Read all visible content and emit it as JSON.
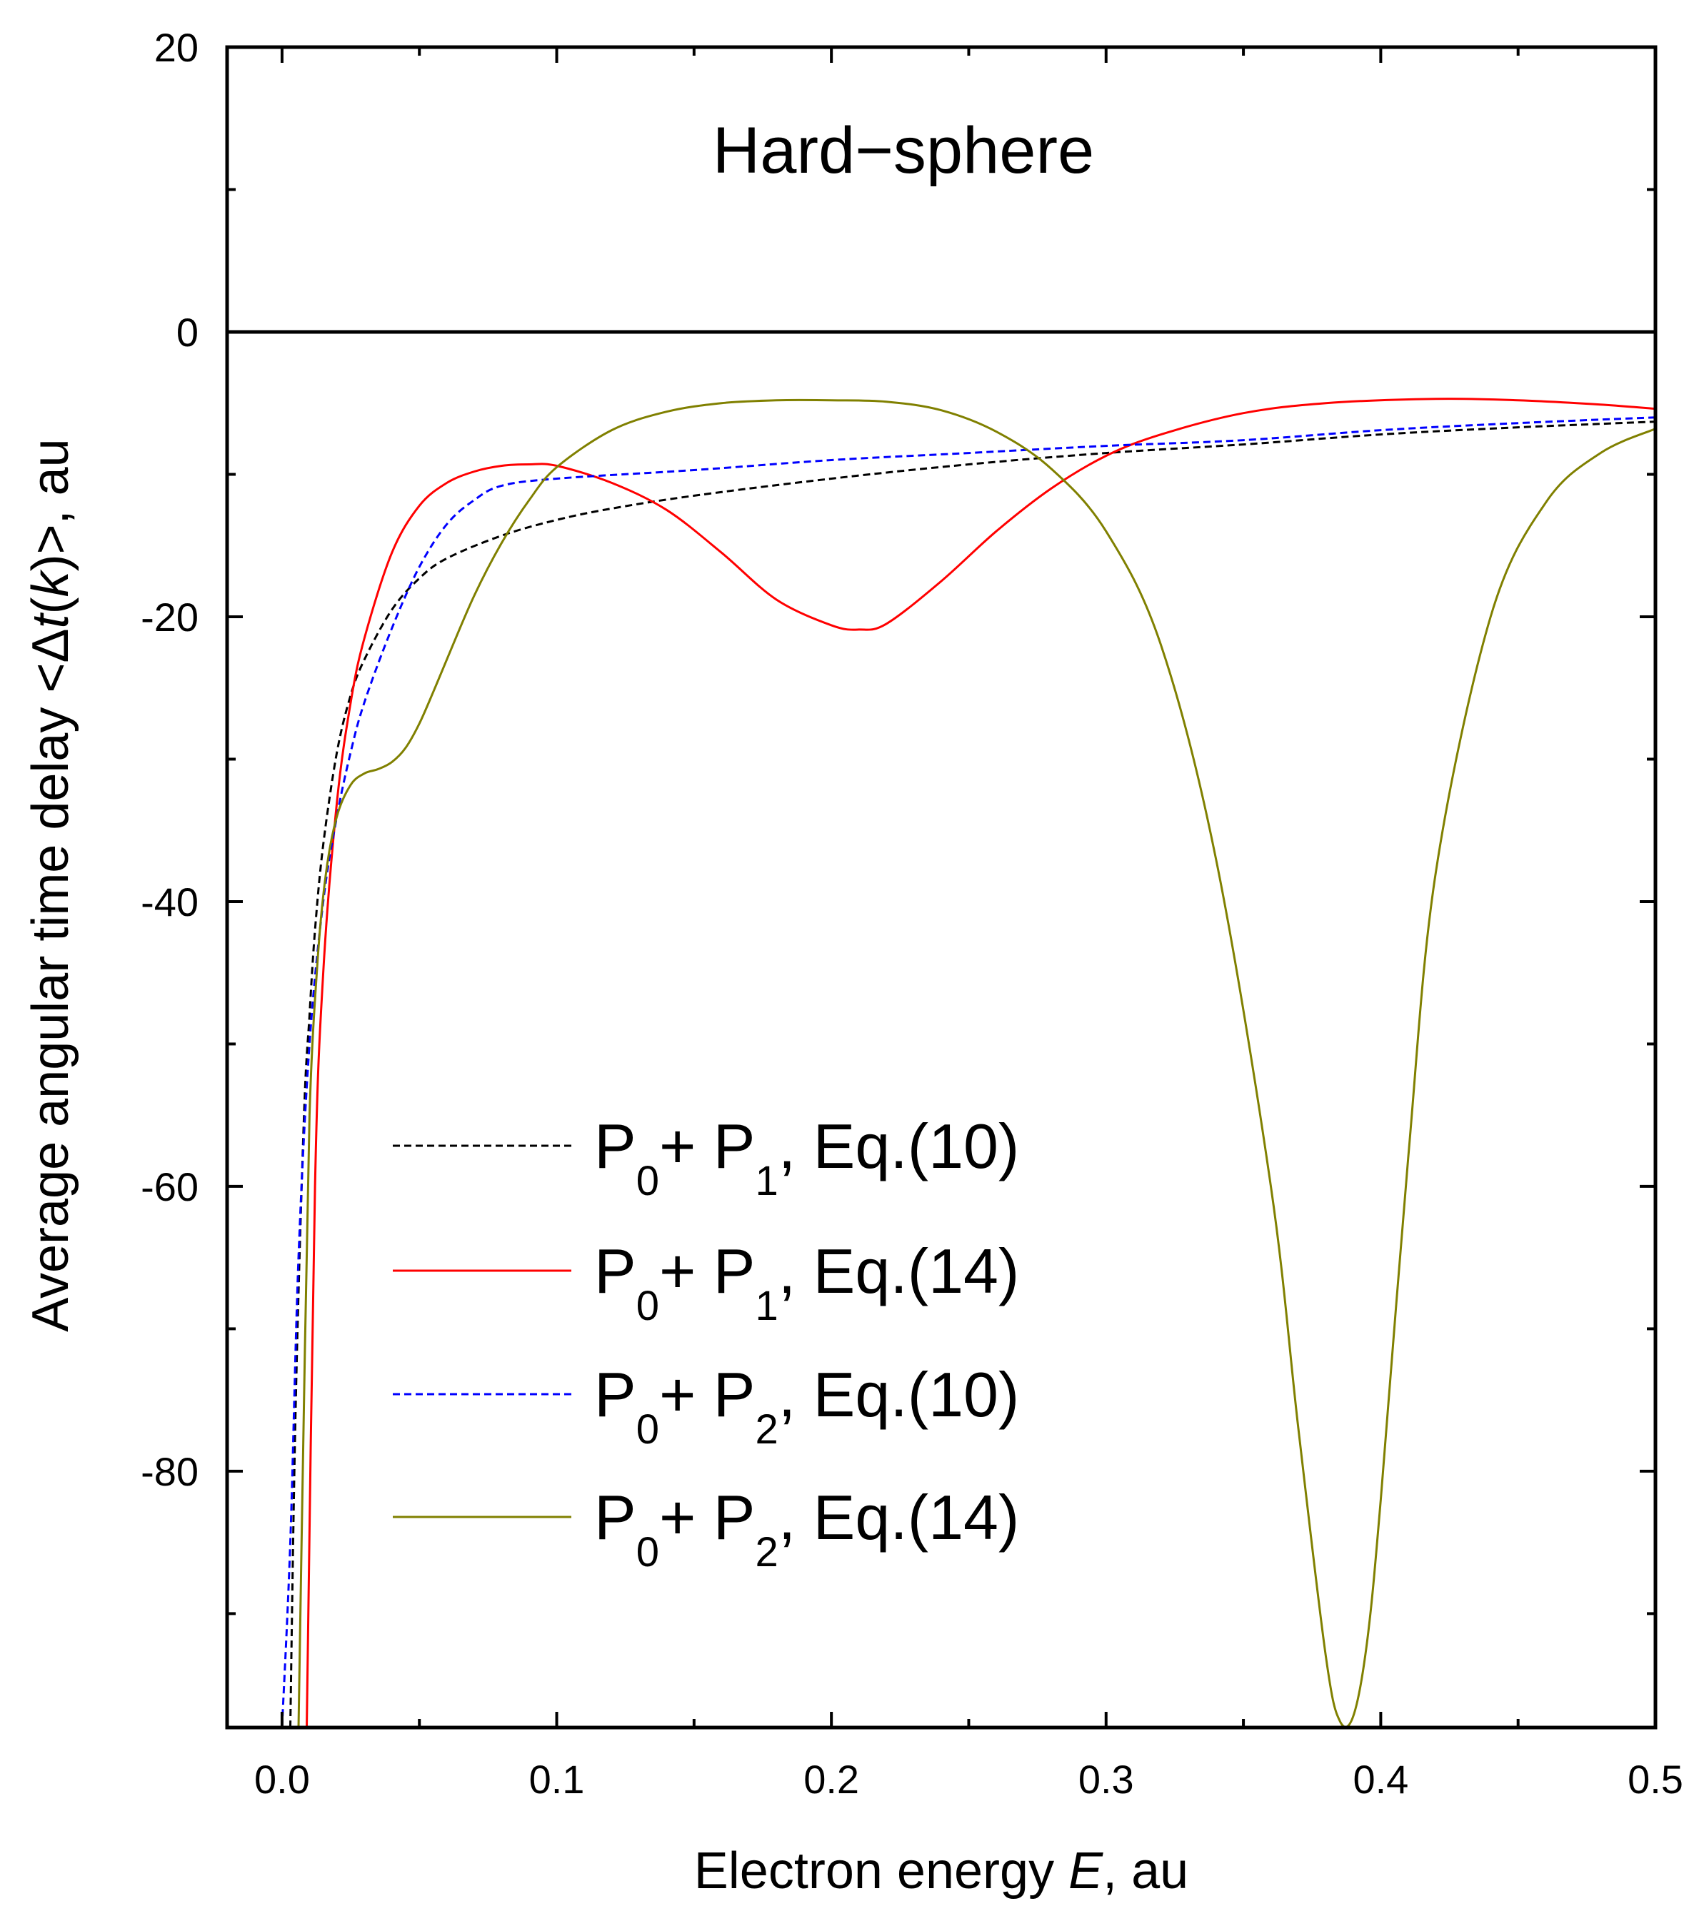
{
  "chart_data": {
    "type": "line",
    "title": "Hard−sphere",
    "xlabel": {
      "prefix": "Electron energy ",
      "italic": "E",
      "suffix": ", au"
    },
    "ylabel": {
      "prefix": "Average angular time delay <Δ",
      "italic1": "t",
      "mid": "(",
      "italic2": "k",
      "suffix": ")>, au"
    },
    "xlim": [
      -0.02,
      0.5
    ],
    "ylim": [
      -98,
      20
    ],
    "x_ticks": [
      {
        "value": 0.0,
        "label": "0.0"
      },
      {
        "value": 0.1,
        "label": "0.1"
      },
      {
        "value": 0.2,
        "label": "0.2"
      },
      {
        "value": 0.3,
        "label": "0.3"
      },
      {
        "value": 0.4,
        "label": "0.4"
      },
      {
        "value": 0.5,
        "label": "0.5"
      }
    ],
    "x_minor_ticks": [
      0.05,
      0.15,
      0.25,
      0.35,
      0.45
    ],
    "y_ticks": [
      {
        "value": 20,
        "label": "20"
      },
      {
        "value": 0,
        "label": "0"
      },
      {
        "value": -20,
        "label": "-20"
      },
      {
        "value": -40,
        "label": "-40"
      },
      {
        "value": -60,
        "label": "-60"
      },
      {
        "value": -80,
        "label": "-80"
      }
    ],
    "y_minor_ticks": [
      10,
      -10,
      -30,
      -50,
      -70,
      -90
    ],
    "zero_line": 0,
    "legend_position": "bottom-left",
    "series": [
      {
        "id": "s1",
        "base": "P",
        "sub_a": "0",
        "mid": "+ P",
        "sub_b": "1",
        "tail": ", Eq.(10)",
        "color": "#000000",
        "dash": "dashed",
        "x": [
          0.003,
          0.005,
          0.008,
          0.01,
          0.012,
          0.015,
          0.02,
          0.025,
          0.03,
          0.04,
          0.05,
          0.06,
          0.08,
          0.1,
          0.12,
          0.15,
          0.2,
          0.25,
          0.3,
          0.35,
          0.4,
          0.45,
          0.5
        ],
        "y": [
          -98,
          -75,
          -55,
          -48,
          -42,
          -36,
          -29.5,
          -25.5,
          -23,
          -19.5,
          -17.3,
          -15.9,
          -14.3,
          -13.2,
          -12.4,
          -11.5,
          -10.3,
          -9.3,
          -8.5,
          -7.9,
          -7.2,
          -6.7,
          -6.3
        ]
      },
      {
        "id": "s2",
        "base": "P",
        "sub_a": "0",
        "mid": "+ P",
        "sub_b": "1",
        "tail": ", Eq.(14)",
        "color": "#ff0000",
        "dash": "solid",
        "x": [
          0.009,
          0.012,
          0.015,
          0.02,
          0.025,
          0.03,
          0.04,
          0.05,
          0.06,
          0.07,
          0.08,
          0.09,
          0.1,
          0.12,
          0.14,
          0.16,
          0.18,
          0.2,
          0.21,
          0.22,
          0.24,
          0.26,
          0.28,
          0.3,
          0.32,
          0.35,
          0.38,
          0.42,
          0.45,
          0.48,
          0.5
        ],
        "y": [
          -98,
          -60,
          -45,
          -33,
          -26,
          -21.5,
          -15.5,
          -12.2,
          -10.6,
          -9.8,
          -9.4,
          -9.3,
          -9.4,
          -10.6,
          -12.5,
          -15.5,
          -18.8,
          -20.6,
          -20.9,
          -20.5,
          -17.5,
          -14,
          -11,
          -8.7,
          -7.2,
          -5.7,
          -5,
          -4.7,
          -4.8,
          -5.1,
          -5.4
        ]
      },
      {
        "id": "s3",
        "base": "P",
        "sub_a": "0",
        "mid": "+ P",
        "sub_b": "2",
        "tail": ", Eq.(10)",
        "color": "#0000ff",
        "dash": "dashed",
        "x": [
          0.0,
          0.003,
          0.006,
          0.01,
          0.015,
          0.02,
          0.025,
          0.03,
          0.04,
          0.05,
          0.06,
          0.07,
          0.08,
          0.1,
          0.15,
          0.2,
          0.25,
          0.3,
          0.35,
          0.4,
          0.45,
          0.5
        ],
        "y": [
          -98,
          -85,
          -65,
          -50,
          -40,
          -34,
          -29.5,
          -26,
          -20.8,
          -16.5,
          -13.5,
          -11.8,
          -10.8,
          -10.3,
          -9.7,
          -9.0,
          -8.5,
          -8.0,
          -7.6,
          -6.9,
          -6.4,
          -6.0
        ]
      },
      {
        "id": "s4",
        "base": "P",
        "sub_a": "0",
        "mid": "+ P",
        "sub_b": "2",
        "tail": ", Eq.(14)",
        "color": "#808000",
        "dash": "solid",
        "x": [
          0.006,
          0.008,
          0.01,
          0.013,
          0.016,
          0.02,
          0.025,
          0.03,
          0.035,
          0.04,
          0.045,
          0.05,
          0.055,
          0.06,
          0.07,
          0.08,
          0.09,
          0.1,
          0.12,
          0.14,
          0.16,
          0.18,
          0.2,
          0.22,
          0.24,
          0.26,
          0.28,
          0.3,
          0.32,
          0.34,
          0.36,
          0.37,
          0.38,
          0.385,
          0.39,
          0.395,
          0.4,
          0.41,
          0.42,
          0.44,
          0.46,
          0.48,
          0.5
        ],
        "y": [
          -98,
          -75,
          -55,
          -44,
          -38,
          -34,
          -31.8,
          -31.0,
          -30.7,
          -30.2,
          -29.2,
          -27.5,
          -25.3,
          -23,
          -18.5,
          -14.8,
          -11.8,
          -9.5,
          -6.9,
          -5.6,
          -5.0,
          -4.8,
          -4.8,
          -4.9,
          -5.5,
          -7.0,
          -9.6,
          -14,
          -22,
          -37,
          -60,
          -77,
          -93,
          -97.5,
          -97.2,
          -92,
          -82,
          -58,
          -38,
          -20,
          -12,
          -8.5,
          -6.8
        ]
      }
    ]
  }
}
